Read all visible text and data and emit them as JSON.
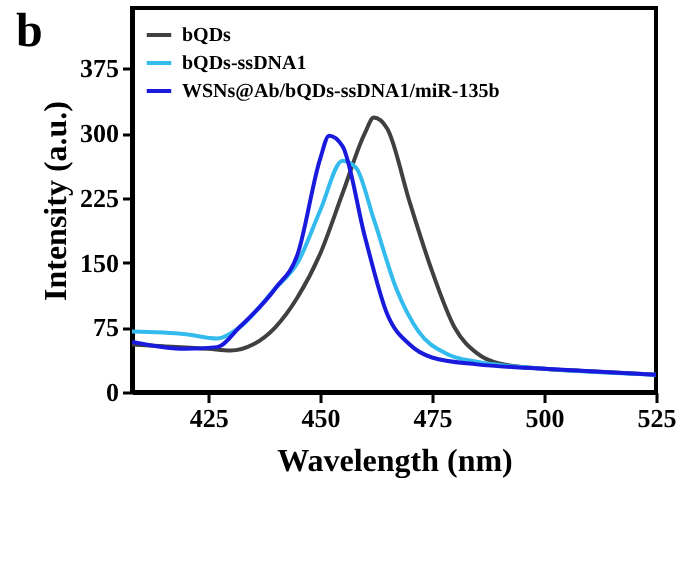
{
  "chart_data": {
    "type": "line",
    "title": "b",
    "xlabel": "Wavelength (nm)",
    "ylabel": "Intensity (a.u.)",
    "xlim": [
      408,
      525
    ],
    "xticks": [
      425,
      450,
      475,
      500,
      525
    ],
    "ylim": [
      0,
      445
    ],
    "yticks": [
      0,
      75,
      150,
      225,
      300,
      375
    ],
    "grid": false,
    "legend": "top left",
    "marker": "none",
    "line_style": "solid",
    "series": [
      {
        "name": "bQDs",
        "color": "#404040",
        "x": [
          408,
          415,
          425,
          430,
          435,
          440,
          445,
          450,
          455,
          460,
          462,
          465,
          470,
          475,
          480,
          485,
          490,
          500,
          510,
          525
        ],
        "values": [
          55,
          53,
          50,
          48,
          55,
          75,
          110,
          160,
          230,
          300,
          318,
          305,
          220,
          140,
          75,
          45,
          33,
          27,
          24,
          20
        ]
      },
      {
        "name": "bQDs-ssDNA1",
        "color": "#33bbee",
        "x": [
          408,
          420,
          427,
          432,
          440,
          445,
          450,
          455,
          458,
          462,
          467,
          472,
          478,
          485,
          500,
          525
        ],
        "values": [
          70,
          67,
          62,
          75,
          120,
          150,
          210,
          268,
          260,
          200,
          120,
          70,
          45,
          35,
          27,
          20
        ]
      },
      {
        "name": "WSNs@Ab/bQDs-ssDNA1/miR-135b",
        "color": "#1a1add",
        "x": [
          408,
          420,
          427,
          432,
          440,
          445,
          450,
          452,
          455,
          460,
          465,
          470,
          475,
          485,
          500,
          525
        ],
        "values": [
          58,
          50,
          52,
          75,
          120,
          160,
          270,
          297,
          285,
          180,
          90,
          55,
          40,
          32,
          27,
          20
        ]
      }
    ]
  }
}
